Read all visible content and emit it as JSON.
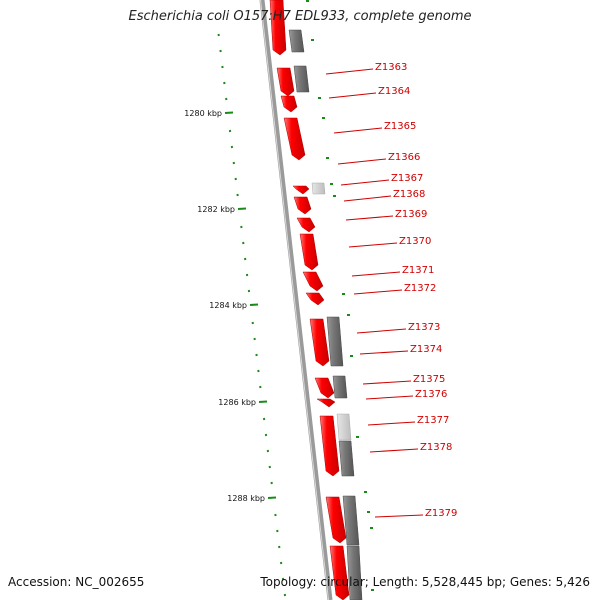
{
  "map": {
    "title": "Escherichia coli O157:H7 EDL933, complete genome",
    "accession_text": "Accession: NC_002655",
    "summary_text": "Topology: circular; Length: 5,528,445 bp; Genes: 5,426",
    "ruler_ticks": [
      {
        "label": "1280 kbp",
        "kbp": 1280
      },
      {
        "label": "1282 kbp",
        "kbp": 1282
      },
      {
        "label": "1284 kbp",
        "kbp": 1284
      },
      {
        "label": "1286 kbp",
        "kbp": 1286
      },
      {
        "label": "1288 kbp",
        "kbp": 1288
      }
    ],
    "gene_labels": [
      "Z1363",
      "Z1364",
      "Z1365",
      "Z1366",
      "Z1367",
      "Z1368",
      "Z1369",
      "Z1370",
      "Z1371",
      "Z1372",
      "Z1373",
      "Z1374",
      "Z1375",
      "Z1376",
      "Z1377",
      "Z1378",
      "Z1379"
    ],
    "colors": {
      "backbone": "#8a8a8a",
      "gene_red": "#ff0000",
      "gene_gray": "#777777",
      "gene_lightgray": "#cfcfcf",
      "tick_green": "#1a8a1a",
      "label_red": "#d00000"
    }
  }
}
